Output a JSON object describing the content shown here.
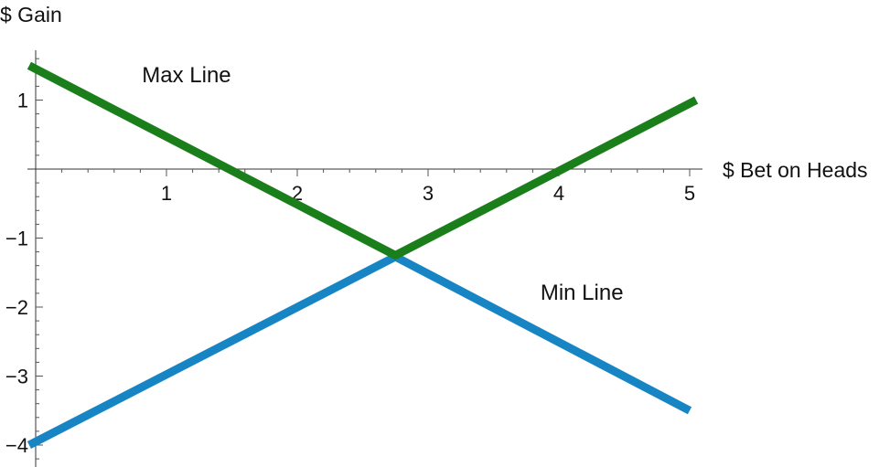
{
  "chart_data": {
    "type": "line",
    "title": "",
    "xlabel": "$ Bet on Heads",
    "ylabel": "$ Gain",
    "xlim": [
      0,
      5
    ],
    "ylim": [
      -4.2,
      1.7
    ],
    "x_ticks": [
      1,
      2,
      3,
      4,
      5
    ],
    "x_tick_labels": [
      "1",
      "2",
      "3",
      "4",
      "5"
    ],
    "y_ticks": [
      1,
      -1,
      -2,
      -3,
      -4
    ],
    "y_tick_labels": [
      "1",
      "−1",
      "−2",
      "−3",
      "−4"
    ],
    "grid": false,
    "legend": "none",
    "series": [
      {
        "name": "Max Line",
        "color": "#1a7f1a",
        "points": [
          [
            -0.05,
            1.5
          ],
          [
            2.75,
            -1.25
          ],
          [
            5.05,
            1.0
          ]
        ]
      },
      {
        "name": "Min Line",
        "color": "#1785c4",
        "points": [
          [
            -0.05,
            -4.0
          ],
          [
            2.75,
            -1.27
          ],
          [
            5.0,
            -3.5
          ]
        ]
      }
    ],
    "annotations": [
      {
        "text": "Max Line",
        "x": 0.75,
        "y": 1.35
      },
      {
        "text": "Min Line",
        "x": 3.95,
        "y": -1.75
      }
    ]
  }
}
